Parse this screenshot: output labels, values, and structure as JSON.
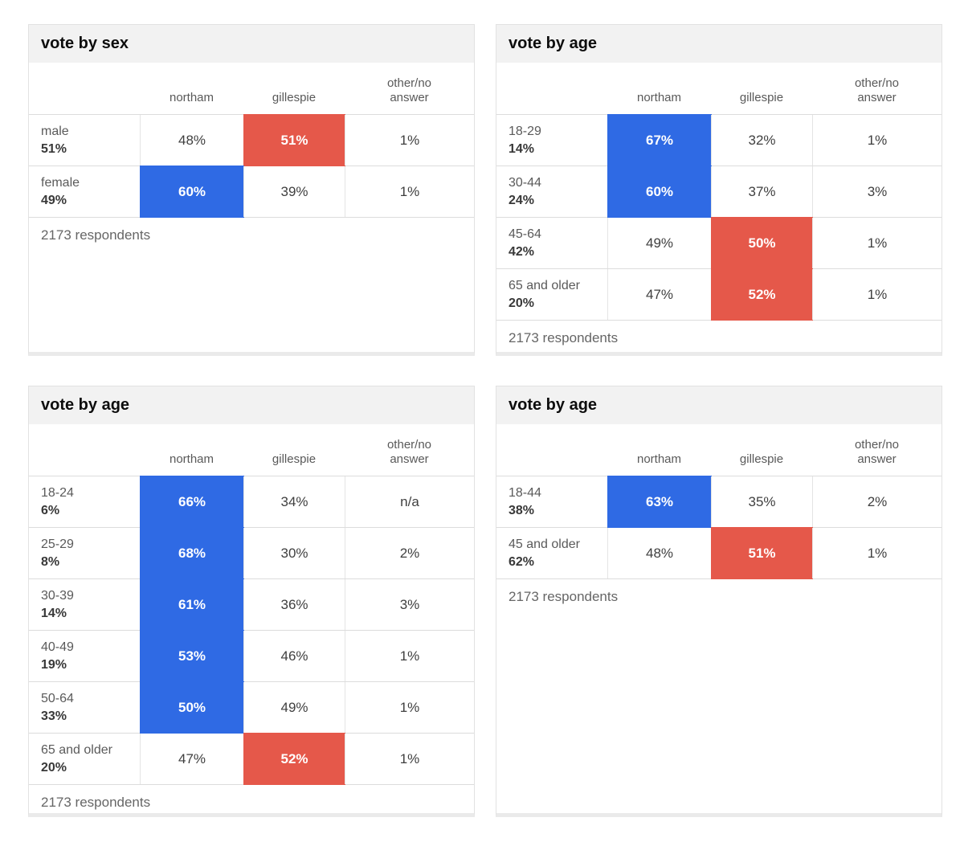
{
  "colors": {
    "northam_highlight": "#2f6ae4",
    "gillespie_highlight": "#e5584a",
    "panel_header_bg": "#f2f2f2",
    "border": "#dcdcdc"
  },
  "chart_data": [
    {
      "type": "table",
      "title": "vote by sex",
      "columns": [
        "northam",
        "gillespie",
        "other/no answer"
      ],
      "rows": [
        {
          "label": "male",
          "group_pct": "51%",
          "values": [
            "48%",
            "51%",
            "1%"
          ],
          "highlight_col": 1,
          "highlight_winner": "gillespie"
        },
        {
          "label": "female",
          "group_pct": "49%",
          "values": [
            "60%",
            "39%",
            "1%"
          ],
          "highlight_col": 0,
          "highlight_winner": "northam"
        }
      ],
      "footer": "2173 respondents"
    },
    {
      "type": "table",
      "title": "vote by age",
      "columns": [
        "northam",
        "gillespie",
        "other/no answer"
      ],
      "rows": [
        {
          "label": "18-29",
          "group_pct": "14%",
          "values": [
            "67%",
            "32%",
            "1%"
          ],
          "highlight_col": 0,
          "highlight_winner": "northam"
        },
        {
          "label": "30-44",
          "group_pct": "24%",
          "values": [
            "60%",
            "37%",
            "3%"
          ],
          "highlight_col": 0,
          "highlight_winner": "northam"
        },
        {
          "label": "45-64",
          "group_pct": "42%",
          "values": [
            "49%",
            "50%",
            "1%"
          ],
          "highlight_col": 1,
          "highlight_winner": "gillespie"
        },
        {
          "label": "65 and older",
          "group_pct": "20%",
          "values": [
            "47%",
            "52%",
            "1%"
          ],
          "highlight_col": 1,
          "highlight_winner": "gillespie"
        }
      ],
      "footer": "2173 respondents"
    },
    {
      "type": "table",
      "title": "vote by age",
      "columns": [
        "northam",
        "gillespie",
        "other/no answer"
      ],
      "rows": [
        {
          "label": "18-24",
          "group_pct": "6%",
          "values": [
            "66%",
            "34%",
            "n/a"
          ],
          "highlight_col": 0,
          "highlight_winner": "northam"
        },
        {
          "label": "25-29",
          "group_pct": "8%",
          "values": [
            "68%",
            "30%",
            "2%"
          ],
          "highlight_col": 0,
          "highlight_winner": "northam"
        },
        {
          "label": "30-39",
          "group_pct": "14%",
          "values": [
            "61%",
            "36%",
            "3%"
          ],
          "highlight_col": 0,
          "highlight_winner": "northam"
        },
        {
          "label": "40-49",
          "group_pct": "19%",
          "values": [
            "53%",
            "46%",
            "1%"
          ],
          "highlight_col": 0,
          "highlight_winner": "northam"
        },
        {
          "label": "50-64",
          "group_pct": "33%",
          "values": [
            "50%",
            "49%",
            "1%"
          ],
          "highlight_col": 0,
          "highlight_winner": "northam"
        },
        {
          "label": "65 and older",
          "group_pct": "20%",
          "values": [
            "47%",
            "52%",
            "1%"
          ],
          "highlight_col": 1,
          "highlight_winner": "gillespie"
        }
      ],
      "footer": "2173 respondents"
    },
    {
      "type": "table",
      "title": "vote by age",
      "columns": [
        "northam",
        "gillespie",
        "other/no answer"
      ],
      "rows": [
        {
          "label": "18-44",
          "group_pct": "38%",
          "values": [
            "63%",
            "35%",
            "2%"
          ],
          "highlight_col": 0,
          "highlight_winner": "northam"
        },
        {
          "label": "45 and older",
          "group_pct": "62%",
          "values": [
            "48%",
            "51%",
            "1%"
          ],
          "highlight_col": 1,
          "highlight_winner": "gillespie"
        }
      ],
      "footer": "2173 respondents"
    }
  ]
}
